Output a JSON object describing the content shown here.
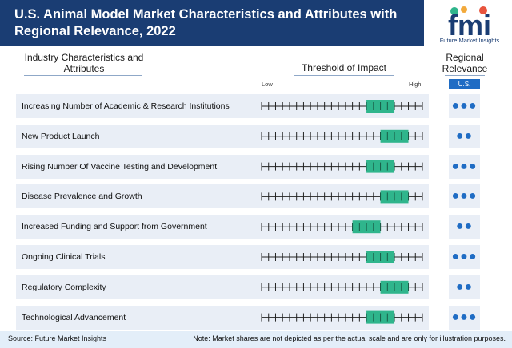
{
  "title": "U.S. Animal Model Market Characteristics and Attributes with Regional Relevance, 2022",
  "logo": {
    "mark": "fmi",
    "text": "Future Market Insights"
  },
  "columns": {
    "characteristics": "Industry Characteristics and Attributes",
    "threshold": "Threshold of Impact",
    "relevance": "Regional Relevance",
    "low": "Low",
    "high": "High",
    "region": "U.S."
  },
  "chart_data": {
    "type": "table",
    "scale_ticks": 24,
    "rows": [
      {
        "label": "Increasing Number of Academic & Research Institutions",
        "impact_start": 15,
        "impact_end": 19,
        "relevance": 3
      },
      {
        "label": "New Product Launch",
        "impact_start": 17,
        "impact_end": 21,
        "relevance": 2
      },
      {
        "label": "Rising Number Of Vaccine Testing and Development",
        "impact_start": 15,
        "impact_end": 19,
        "relevance": 3
      },
      {
        "label": "Disease Prevalence and Growth",
        "impact_start": 17,
        "impact_end": 21,
        "relevance": 3
      },
      {
        "label": "Increased Funding and Support from Government",
        "impact_start": 13,
        "impact_end": 17,
        "relevance": 2
      },
      {
        "label": "Ongoing Clinical Trials",
        "impact_start": 15,
        "impact_end": 19,
        "relevance": 3
      },
      {
        "label": "Regulatory Complexity",
        "impact_start": 17,
        "impact_end": 21,
        "relevance": 2
      },
      {
        "label": "Technological Advancement",
        "impact_start": 15,
        "impact_end": 19,
        "relevance": 3
      }
    ]
  },
  "colors": {
    "band": "#1a3d73",
    "impact": "#2fb58c",
    "dots": "#1f6cc4",
    "row": "#e9eef6"
  },
  "footer": {
    "source": "Source: Future Market Insights",
    "note": "Note: Market shares are not depicted as per the actual scale and are only for illustration purposes."
  }
}
